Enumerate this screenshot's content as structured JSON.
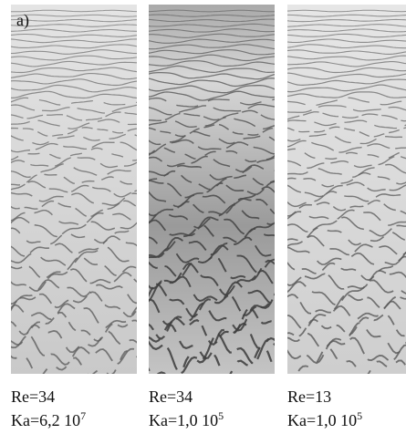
{
  "figure": {
    "label": "a)",
    "panels": [
      {
        "re": "Re=34",
        "ka": "Ka=6,2 10",
        "ka_exp": "7"
      },
      {
        "re": "Re=34",
        "ka": "Ka=1,0 10",
        "ka_exp": "5"
      },
      {
        "re": "Re=13",
        "ka": "Ka=1,0 10",
        "ka_exp": "5"
      }
    ]
  }
}
